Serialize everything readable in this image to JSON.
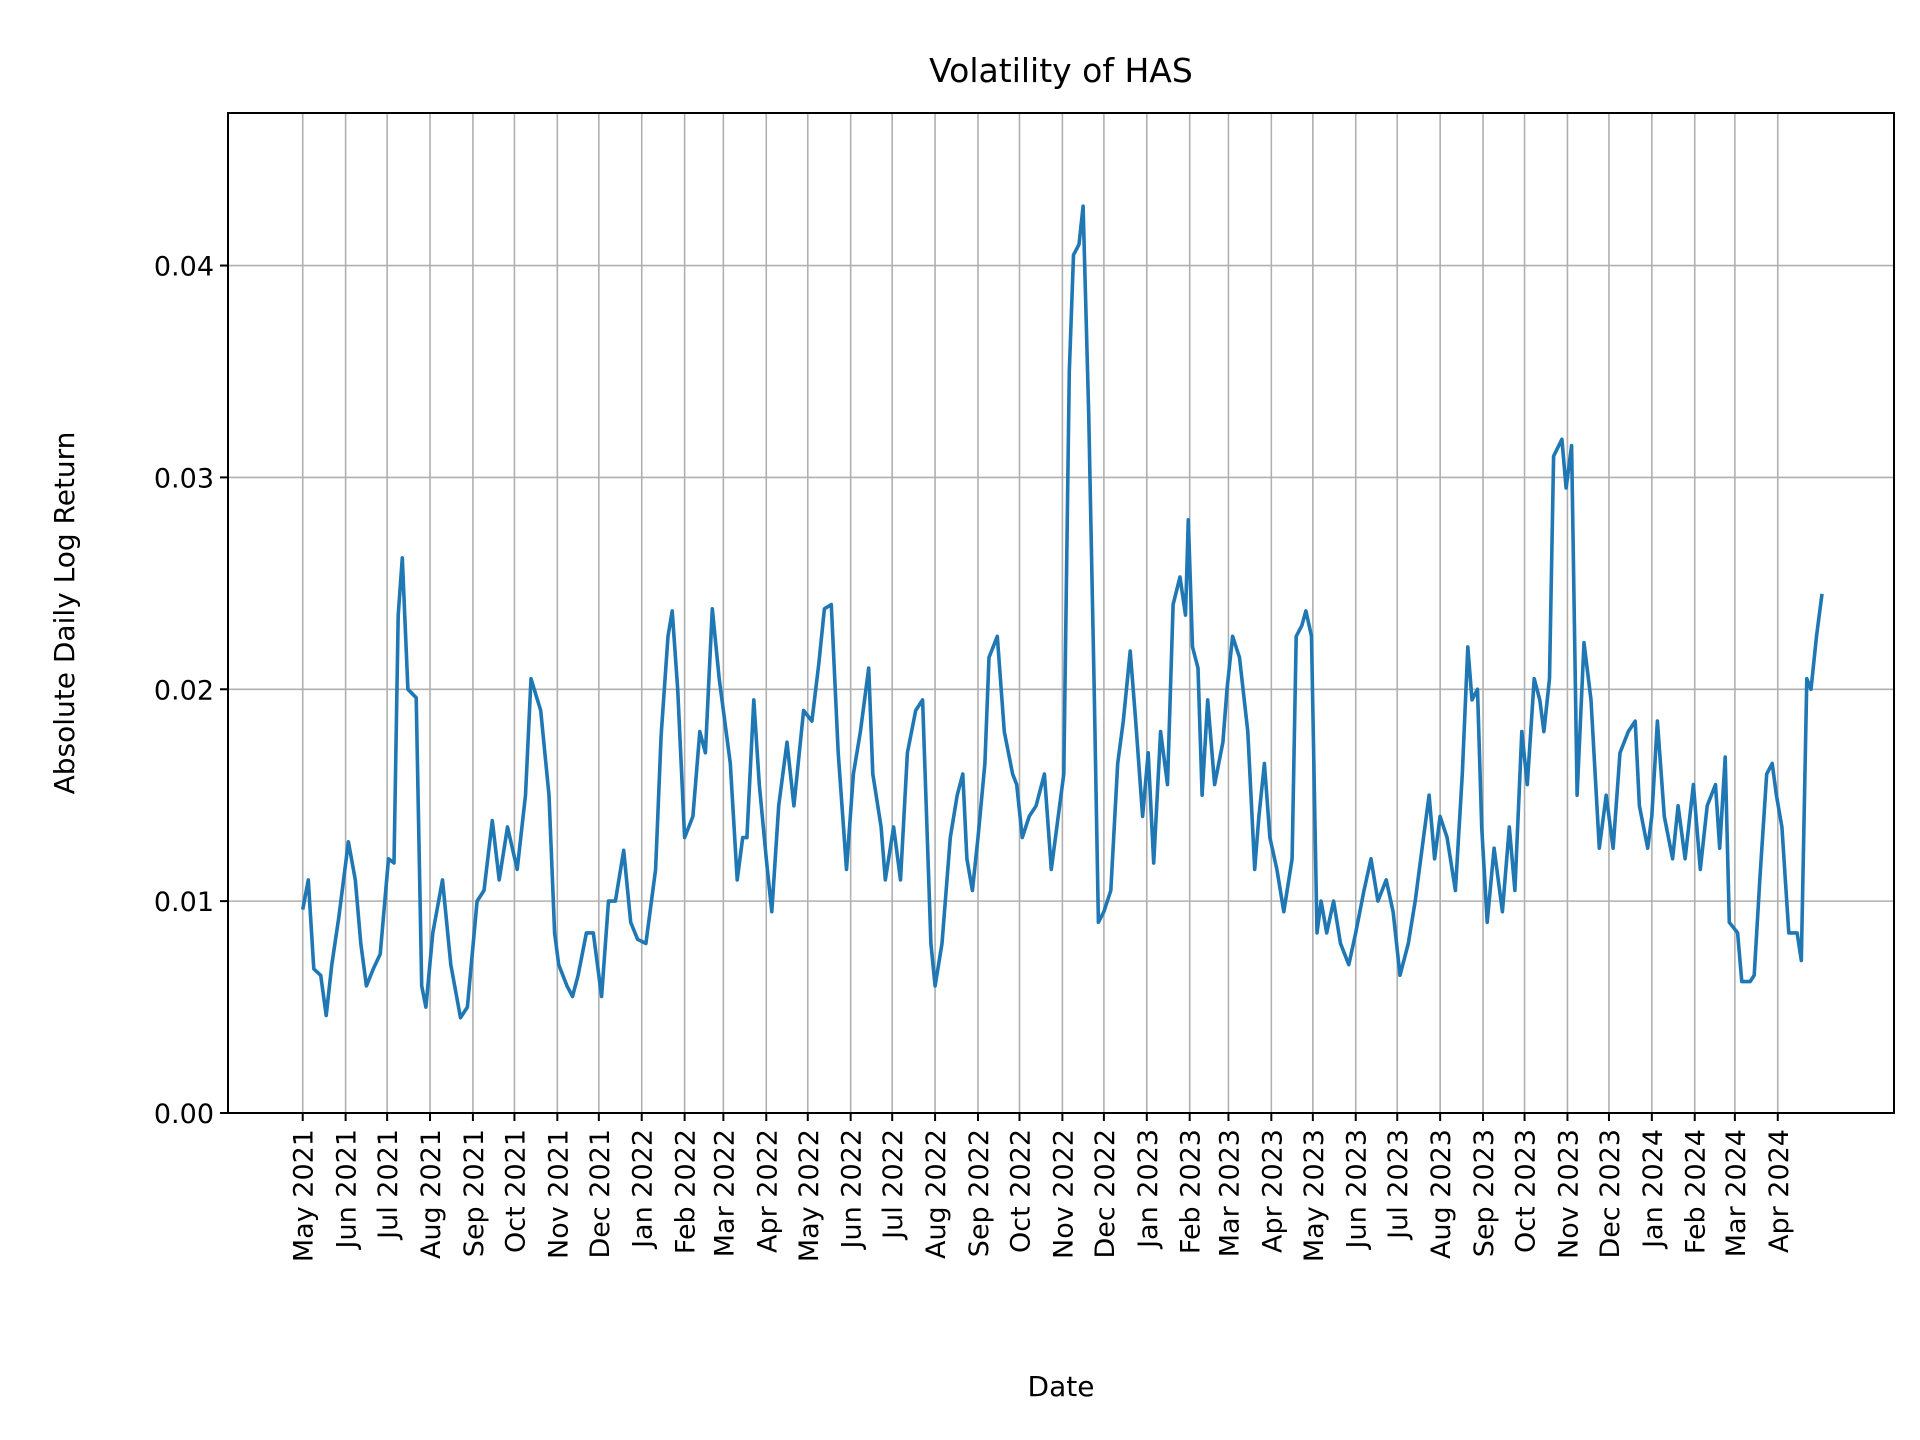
{
  "chart_data": {
    "type": "line",
    "title": "Volatility of HAS",
    "xlabel": "Date",
    "ylabel": "Absolute Daily Log Return",
    "xlim": [
      "2021-03-08",
      "2024-06-24"
    ],
    "ylim": [
      0,
      0.0472
    ],
    "grid": true,
    "line_color": "#1f77b4",
    "yticks": [
      0.0,
      0.01,
      0.02,
      0.03,
      0.04
    ],
    "ytick_labels": [
      "0.00",
      "0.01",
      "0.02",
      "0.03",
      "0.04"
    ],
    "xticks": [
      "2021-05-01",
      "2021-06-01",
      "2021-07-01",
      "2021-08-01",
      "2021-09-01",
      "2021-10-01",
      "2021-11-01",
      "2021-12-01",
      "2022-01-01",
      "2022-02-01",
      "2022-03-01",
      "2022-04-01",
      "2022-05-01",
      "2022-06-01",
      "2022-07-01",
      "2022-08-01",
      "2022-09-01",
      "2022-10-01",
      "2022-11-01",
      "2022-12-01",
      "2023-01-01",
      "2023-02-01",
      "2023-03-01",
      "2023-04-01",
      "2023-05-01",
      "2023-06-01",
      "2023-07-01",
      "2023-08-01",
      "2023-09-01",
      "2023-10-01",
      "2023-11-01",
      "2023-12-01",
      "2024-01-01",
      "2024-02-01",
      "2024-03-01",
      "2024-04-01"
    ],
    "xtick_labels": [
      "May 2021",
      "Jun 2021",
      "Jul 2021",
      "Aug 2021",
      "Sep 2021",
      "Oct 2021",
      "Nov 2021",
      "Dec 2021",
      "Jan 2022",
      "Feb 2022",
      "Mar 2022",
      "Apr 2022",
      "May 2022",
      "Jun 2022",
      "Jul 2022",
      "Aug 2022",
      "Sep 2022",
      "Oct 2022",
      "Nov 2022",
      "Dec 2022",
      "Jan 2023",
      "Feb 2023",
      "Mar 2023",
      "Apr 2023",
      "May 2023",
      "Jun 2023",
      "Jul 2023",
      "Aug 2023",
      "Sep 2023",
      "Oct 2023",
      "Nov 2023",
      "Dec 2023",
      "Jan 2024",
      "Feb 2024",
      "Mar 2024",
      "Apr 2024"
    ],
    "series": [
      {
        "points": [
          [
            "2021-05-01",
            0.0096
          ],
          [
            "2021-05-05",
            0.011
          ],
          [
            "2021-05-09",
            0.0068
          ],
          [
            "2021-05-14",
            0.0065
          ],
          [
            "2021-05-18",
            0.0046
          ],
          [
            "2021-05-22",
            0.007
          ],
          [
            "2021-05-27",
            0.0092
          ],
          [
            "2021-06-03",
            0.0128
          ],
          [
            "2021-06-08",
            0.011
          ],
          [
            "2021-06-12",
            0.008
          ],
          [
            "2021-06-16",
            0.006
          ],
          [
            "2021-06-21",
            0.0068
          ],
          [
            "2021-06-26",
            0.0075
          ],
          [
            "2021-07-02",
            0.012
          ],
          [
            "2021-07-06",
            0.0118
          ],
          [
            "2021-07-09",
            0.0235
          ],
          [
            "2021-07-12",
            0.0262
          ],
          [
            "2021-07-16",
            0.02
          ],
          [
            "2021-07-22",
            0.0196
          ],
          [
            "2021-07-26",
            0.006
          ],
          [
            "2021-07-29",
            0.005
          ],
          [
            "2021-08-03",
            0.0085
          ],
          [
            "2021-08-10",
            0.011
          ],
          [
            "2021-08-16",
            0.007
          ],
          [
            "2021-08-23",
            0.0045
          ],
          [
            "2021-08-28",
            0.005
          ],
          [
            "2021-09-04",
            0.01
          ],
          [
            "2021-09-09",
            0.0105
          ],
          [
            "2021-09-15",
            0.0138
          ],
          [
            "2021-09-20",
            0.011
          ],
          [
            "2021-09-26",
            0.0135
          ],
          [
            "2021-10-03",
            0.0115
          ],
          [
            "2021-10-09",
            0.015
          ],
          [
            "2021-10-13",
            0.0205
          ],
          [
            "2021-10-20",
            0.019
          ],
          [
            "2021-10-26",
            0.015
          ],
          [
            "2021-10-30",
            0.0085
          ],
          [
            "2021-11-02",
            0.007
          ],
          [
            "2021-11-08",
            0.006
          ],
          [
            "2021-11-12",
            0.0055
          ],
          [
            "2021-11-16",
            0.0065
          ],
          [
            "2021-11-22",
            0.0085
          ],
          [
            "2021-11-27",
            0.0085
          ],
          [
            "2021-12-03",
            0.0055
          ],
          [
            "2021-12-08",
            0.01
          ],
          [
            "2021-12-13",
            0.01
          ],
          [
            "2021-12-19",
            0.0124
          ],
          [
            "2021-12-24",
            0.009
          ],
          [
            "2021-12-29",
            0.0082
          ],
          [
            "2022-01-04",
            0.008
          ],
          [
            "2022-01-11",
            0.0115
          ],
          [
            "2022-01-15",
            0.0178
          ],
          [
            "2022-01-20",
            0.0225
          ],
          [
            "2022-01-23",
            0.0237
          ],
          [
            "2022-01-27",
            0.02
          ],
          [
            "2022-02-01",
            0.013
          ],
          [
            "2022-02-07",
            0.014
          ],
          [
            "2022-02-12",
            0.018
          ],
          [
            "2022-02-16",
            0.017
          ],
          [
            "2022-02-21",
            0.0238
          ],
          [
            "2022-02-26",
            0.0205
          ],
          [
            "2022-03-06",
            0.0165
          ],
          [
            "2022-03-11",
            0.011
          ],
          [
            "2022-03-15",
            0.013
          ],
          [
            "2022-03-18",
            0.013
          ],
          [
            "2022-03-23",
            0.0195
          ],
          [
            "2022-03-27",
            0.0155
          ],
          [
            "2022-04-01",
            0.012
          ],
          [
            "2022-04-05",
            0.0095
          ],
          [
            "2022-04-10",
            0.0145
          ],
          [
            "2022-04-16",
            0.0175
          ],
          [
            "2022-04-21",
            0.0145
          ],
          [
            "2022-04-28",
            0.019
          ],
          [
            "2022-05-04",
            0.0185
          ],
          [
            "2022-05-09",
            0.0212
          ],
          [
            "2022-05-13",
            0.0238
          ],
          [
            "2022-05-18",
            0.024
          ],
          [
            "2022-05-23",
            0.017
          ],
          [
            "2022-05-29",
            0.0115
          ],
          [
            "2022-06-03",
            0.016
          ],
          [
            "2022-06-08",
            0.018
          ],
          [
            "2022-06-14",
            0.021
          ],
          [
            "2022-06-17",
            0.016
          ],
          [
            "2022-06-23",
            0.0135
          ],
          [
            "2022-06-26",
            0.011
          ],
          [
            "2022-07-02",
            0.0135
          ],
          [
            "2022-07-07",
            0.011
          ],
          [
            "2022-07-12",
            0.017
          ],
          [
            "2022-07-18",
            0.019
          ],
          [
            "2022-07-23",
            0.0195
          ],
          [
            "2022-07-29",
            0.008
          ],
          [
            "2022-08-01",
            0.006
          ],
          [
            "2022-08-06",
            0.008
          ],
          [
            "2022-08-12",
            0.013
          ],
          [
            "2022-08-17",
            0.015
          ],
          [
            "2022-08-21",
            0.016
          ],
          [
            "2022-08-24",
            0.012
          ],
          [
            "2022-08-28",
            0.0105
          ],
          [
            "2022-09-01",
            0.013
          ],
          [
            "2022-09-06",
            0.0165
          ],
          [
            "2022-09-09",
            0.0215
          ],
          [
            "2022-09-15",
            0.0225
          ],
          [
            "2022-09-20",
            0.018
          ],
          [
            "2022-09-26",
            0.016
          ],
          [
            "2022-09-29",
            0.0155
          ],
          [
            "2022-10-03",
            0.013
          ],
          [
            "2022-10-08",
            0.014
          ],
          [
            "2022-10-13",
            0.0145
          ],
          [
            "2022-10-19",
            0.016
          ],
          [
            "2022-10-24",
            0.0115
          ],
          [
            "2022-10-30",
            0.0145
          ],
          [
            "2022-11-02",
            0.016
          ],
          [
            "2022-11-06",
            0.035
          ],
          [
            "2022-11-09",
            0.0405
          ],
          [
            "2022-11-13",
            0.041
          ],
          [
            "2022-11-16",
            0.0428
          ],
          [
            "2022-11-20",
            0.033
          ],
          [
            "2022-11-24",
            0.02
          ],
          [
            "2022-11-27",
            0.009
          ],
          [
            "2022-12-01",
            0.0095
          ],
          [
            "2022-12-06",
            0.0105
          ],
          [
            "2022-12-11",
            0.0165
          ],
          [
            "2022-12-15",
            0.0185
          ],
          [
            "2022-12-20",
            0.0218
          ],
          [
            "2022-12-24",
            0.0185
          ],
          [
            "2022-12-29",
            0.014
          ],
          [
            "2023-01-02",
            0.017
          ],
          [
            "2023-01-06",
            0.0118
          ],
          [
            "2023-01-11",
            0.018
          ],
          [
            "2023-01-16",
            0.0155
          ],
          [
            "2023-01-20",
            0.024
          ],
          [
            "2023-01-25",
            0.0253
          ],
          [
            "2023-01-29",
            0.0235
          ],
          [
            "2023-01-31",
            0.028
          ],
          [
            "2023-02-03",
            0.022
          ],
          [
            "2023-02-07",
            0.021
          ],
          [
            "2023-02-10",
            0.015
          ],
          [
            "2023-02-14",
            0.0195
          ],
          [
            "2023-02-19",
            0.0155
          ],
          [
            "2023-02-25",
            0.0175
          ],
          [
            "2023-02-28",
            0.02
          ],
          [
            "2023-03-04",
            0.0225
          ],
          [
            "2023-03-09",
            0.0215
          ],
          [
            "2023-03-15",
            0.018
          ],
          [
            "2023-03-20",
            0.0115
          ],
          [
            "2023-03-23",
            0.014
          ],
          [
            "2023-03-27",
            0.0165
          ],
          [
            "2023-03-31",
            0.013
          ],
          [
            "2023-04-05",
            0.0115
          ],
          [
            "2023-04-10",
            0.0095
          ],
          [
            "2023-04-16",
            0.012
          ],
          [
            "2023-04-19",
            0.0225
          ],
          [
            "2023-04-23",
            0.023
          ],
          [
            "2023-04-26",
            0.0237
          ],
          [
            "2023-04-30",
            0.0225
          ],
          [
            "2023-05-04",
            0.0085
          ],
          [
            "2023-05-07",
            0.01
          ],
          [
            "2023-05-11",
            0.0085
          ],
          [
            "2023-05-16",
            0.01
          ],
          [
            "2023-05-21",
            0.008
          ],
          [
            "2023-05-27",
            0.007
          ],
          [
            "2023-06-01",
            0.0085
          ],
          [
            "2023-06-07",
            0.0105
          ],
          [
            "2023-06-12",
            0.012
          ],
          [
            "2023-06-17",
            0.01
          ],
          [
            "2023-06-23",
            0.011
          ],
          [
            "2023-06-28",
            0.0095
          ],
          [
            "2023-07-03",
            0.0065
          ],
          [
            "2023-07-09",
            0.008
          ],
          [
            "2023-07-14",
            0.01
          ],
          [
            "2023-07-20",
            0.013
          ],
          [
            "2023-07-24",
            0.015
          ],
          [
            "2023-07-28",
            0.012
          ],
          [
            "2023-08-01",
            0.014
          ],
          [
            "2023-08-06",
            0.013
          ],
          [
            "2023-08-12",
            0.0105
          ],
          [
            "2023-08-17",
            0.016
          ],
          [
            "2023-08-21",
            0.022
          ],
          [
            "2023-08-24",
            0.0195
          ],
          [
            "2023-08-28",
            0.02
          ],
          [
            "2023-08-31",
            0.0135
          ],
          [
            "2023-09-04",
            0.009
          ],
          [
            "2023-09-09",
            0.0125
          ],
          [
            "2023-09-15",
            0.0095
          ],
          [
            "2023-09-20",
            0.0135
          ],
          [
            "2023-09-24",
            0.0105
          ],
          [
            "2023-09-29",
            0.018
          ],
          [
            "2023-10-03",
            0.0155
          ],
          [
            "2023-10-08",
            0.0205
          ],
          [
            "2023-10-12",
            0.0195
          ],
          [
            "2023-10-15",
            0.018
          ],
          [
            "2023-10-19",
            0.0205
          ],
          [
            "2023-10-22",
            0.031
          ],
          [
            "2023-10-28",
            0.0318
          ],
          [
            "2023-10-31",
            0.0295
          ],
          [
            "2023-11-04",
            0.0315
          ],
          [
            "2023-11-08",
            0.015
          ],
          [
            "2023-11-13",
            0.0222
          ],
          [
            "2023-11-18",
            0.0195
          ],
          [
            "2023-11-24",
            0.0125
          ],
          [
            "2023-11-29",
            0.015
          ],
          [
            "2023-12-04",
            0.0125
          ],
          [
            "2023-12-09",
            0.017
          ],
          [
            "2023-12-15",
            0.018
          ],
          [
            "2023-12-20",
            0.0185
          ],
          [
            "2023-12-23",
            0.0145
          ],
          [
            "2023-12-29",
            0.0125
          ],
          [
            "2024-01-01",
            0.014
          ],
          [
            "2024-01-05",
            0.0185
          ],
          [
            "2024-01-10",
            0.014
          ],
          [
            "2024-01-16",
            0.012
          ],
          [
            "2024-01-20",
            0.0145
          ],
          [
            "2024-01-25",
            0.012
          ],
          [
            "2024-01-31",
            0.0155
          ],
          [
            "2024-02-05",
            0.0115
          ],
          [
            "2024-02-10",
            0.0145
          ],
          [
            "2024-02-16",
            0.0155
          ],
          [
            "2024-02-19",
            0.0125
          ],
          [
            "2024-02-23",
            0.0168
          ],
          [
            "2024-02-26",
            0.009
          ],
          [
            "2024-03-03",
            0.0085
          ],
          [
            "2024-03-06",
            0.0062
          ],
          [
            "2024-03-12",
            0.0062
          ],
          [
            "2024-03-15",
            0.0065
          ],
          [
            "2024-03-19",
            0.011
          ],
          [
            "2024-03-24",
            0.016
          ],
          [
            "2024-03-28",
            0.0165
          ],
          [
            "2024-03-31",
            0.015
          ],
          [
            "2024-04-04",
            0.0135
          ],
          [
            "2024-04-09",
            0.0085
          ],
          [
            "2024-04-15",
            0.0085
          ],
          [
            "2024-04-18",
            0.0072
          ],
          [
            "2024-04-22",
            0.0205
          ],
          [
            "2024-04-25",
            0.02
          ],
          [
            "2024-04-29",
            0.0225
          ],
          [
            "2024-05-03",
            0.0245
          ]
        ]
      }
    ]
  }
}
